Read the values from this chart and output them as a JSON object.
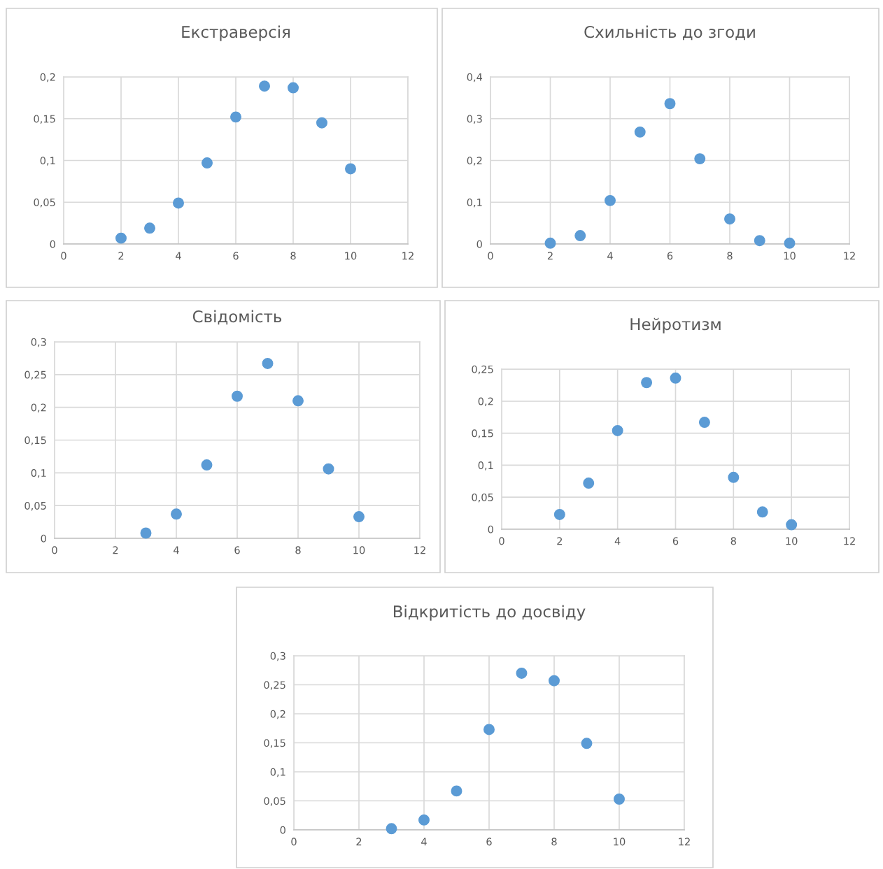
{
  "chart_data": [
    {
      "type": "scatter",
      "title": "Екстраверсія",
      "x": [
        2,
        3,
        4,
        5,
        6,
        7,
        8,
        9,
        10
      ],
      "series": [
        {
          "color": "#5b9bd5",
          "values": [
            0.007,
            0.019,
            0.049,
            0.097,
            0.152,
            0.189,
            0.187,
            0.145,
            0.09
          ]
        }
      ],
      "xlim": [
        0,
        12
      ],
      "xticks": [
        0,
        2,
        4,
        6,
        8,
        10,
        12
      ],
      "ylim": [
        0,
        0.2
      ],
      "yticks": [
        0,
        {
          "value": 0.05,
          "label": "0,05"
        },
        {
          "value": 0.1,
          "label": "0,1"
        },
        {
          "value": 0.15,
          "label": "0,15"
        },
        {
          "value": 0.2,
          "label": "0,2"
        }
      ],
      "grid": true
    },
    {
      "type": "scatter",
      "title": "Схильність до згоди",
      "x": [
        2,
        3,
        4,
        5,
        6,
        7,
        8,
        9,
        10
      ],
      "series": [
        {
          "color": "#5b9bd5",
          "values": [
            0.002,
            0.02,
            0.104,
            0.268,
            0.336,
            0.204,
            0.06,
            0.008,
            0.002
          ]
        }
      ],
      "xlim": [
        0,
        12
      ],
      "xticks": [
        0,
        2,
        4,
        6,
        8,
        10,
        12
      ],
      "ylim": [
        0,
        0.4
      ],
      "yticks": [
        0,
        {
          "value": 0.1,
          "label": "0,1"
        },
        {
          "value": 0.2,
          "label": "0,2"
        },
        {
          "value": 0.3,
          "label": "0,3"
        },
        {
          "value": 0.4,
          "label": "0,4"
        }
      ],
      "grid": true
    },
    {
      "type": "scatter",
      "title": "Свідомість",
      "x": [
        3,
        4,
        5,
        6,
        7,
        8,
        9,
        10
      ],
      "series": [
        {
          "color": "#5b9bd5",
          "values": [
            0.008,
            0.037,
            0.112,
            0.217,
            0.267,
            0.21,
            0.106,
            0.033
          ]
        }
      ],
      "xlim": [
        0,
        12
      ],
      "xticks": [
        0,
        2,
        4,
        6,
        8,
        10,
        12
      ],
      "ylim": [
        0,
        0.3
      ],
      "yticks": [
        0,
        {
          "value": 0.05,
          "label": "0,05"
        },
        {
          "value": 0.1,
          "label": "0,1"
        },
        {
          "value": 0.15,
          "label": "0,15"
        },
        {
          "value": 0.2,
          "label": "0,2"
        },
        {
          "value": 0.25,
          "label": "0,25"
        },
        {
          "value": 0.3,
          "label": "0,3"
        }
      ],
      "grid": true
    },
    {
      "type": "scatter",
      "title": "Нейротизм",
      "x": [
        2,
        3,
        4,
        5,
        6,
        7,
        8,
        9,
        10
      ],
      "series": [
        {
          "color": "#5b9bd5",
          "values": [
            0.023,
            0.072,
            0.154,
            0.229,
            0.236,
            0.167,
            0.081,
            0.027,
            0.007
          ]
        }
      ],
      "xlim": [
        0,
        12
      ],
      "xticks": [
        0,
        2,
        4,
        6,
        8,
        10,
        12
      ],
      "ylim": [
        0,
        0.25
      ],
      "yticks": [
        0,
        {
          "value": 0.05,
          "label": "0,05"
        },
        {
          "value": 0.1,
          "label": "0,1"
        },
        {
          "value": 0.15,
          "label": "0,15"
        },
        {
          "value": 0.2,
          "label": "0,2"
        },
        {
          "value": 0.25,
          "label": "0,25"
        }
      ],
      "grid": true
    },
    {
      "type": "scatter",
      "title": "Відкритість до досвіду",
      "x": [
        3,
        4,
        5,
        6,
        7,
        8,
        9,
        10
      ],
      "series": [
        {
          "color": "#5b9bd5",
          "values": [
            0.002,
            0.017,
            0.067,
            0.173,
            0.27,
            0.257,
            0.149,
            0.053
          ]
        }
      ],
      "xlim": [
        0,
        12
      ],
      "xticks": [
        0,
        2,
        4,
        6,
        8,
        10,
        12
      ],
      "ylim": [
        0,
        0.3
      ],
      "yticks": [
        0,
        {
          "value": 0.05,
          "label": "0,05"
        },
        {
          "value": 0.1,
          "label": "0,1"
        },
        {
          "value": 0.15,
          "label": "0,15"
        },
        {
          "value": 0.2,
          "label": "0,2"
        },
        {
          "value": 0.25,
          "label": "0,25"
        },
        {
          "value": 0.3,
          "label": "0,3"
        }
      ],
      "grid": true
    }
  ]
}
